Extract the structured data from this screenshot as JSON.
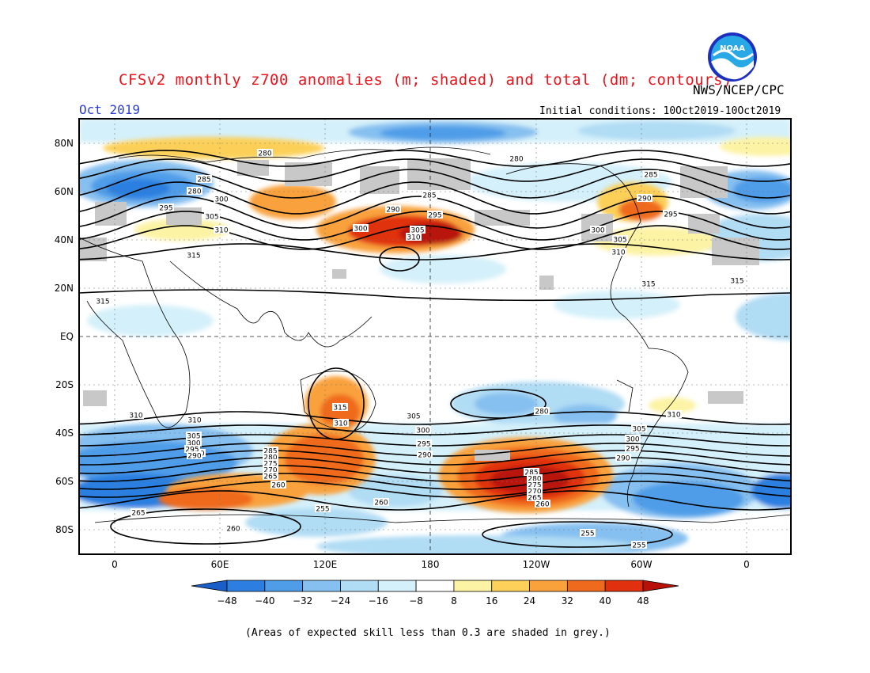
{
  "header": {
    "title": "CFSv2 monthly z700 anomalies (m; shaded) and total (dm; contours)",
    "agency": "NWS/NCEP/CPC",
    "month": "Oct 2019",
    "initial_conditions": "Initial conditions: 10Oct2019-10Oct2019",
    "logo_text": "NOAA"
  },
  "map": {
    "lat_labels": [
      "80N",
      "60N",
      "40N",
      "20N",
      "EQ",
      "20S",
      "40S",
      "60S",
      "80S"
    ],
    "lon_labels": [
      "0",
      "60E",
      "120E",
      "180",
      "120W",
      "60W",
      "0"
    ],
    "contour_labels": [
      "280",
      "285",
      "280",
      "300",
      "295",
      "305",
      "310",
      "315",
      "315",
      "285",
      "290",
      "295",
      "300",
      "305",
      "310",
      "280",
      "285",
      "290",
      "295",
      "300",
      "305",
      "310",
      "315",
      "315",
      "310",
      "305",
      "300",
      "295",
      "290",
      "285",
      "280",
      "275",
      "270",
      "265",
      "260",
      "260",
      "255",
      "260",
      "265",
      "260",
      "310",
      "305",
      "300",
      "295",
      "290",
      "285",
      "280",
      "275",
      "270",
      "265",
      "260",
      "255",
      "255",
      "315",
      "310",
      "305",
      "300",
      "295",
      "290",
      "280",
      "310"
    ],
    "colors": {
      "neg48": "#1a5fc8",
      "neg40": "#2c7fe0",
      "neg32": "#4f9de8",
      "neg24": "#86c0f0",
      "neg16": "#b0dcf4",
      "neg8": "#d4f0fa",
      "pos8": "#fdf3a4",
      "pos16": "#fcd059",
      "pos24": "#f9a23c",
      "pos32": "#f06a1e",
      "pos40": "#e0300e",
      "pos48": "#b81208",
      "low_skill": "#c8c8c8"
    }
  },
  "colorbar": {
    "labels": [
      "-48",
      "-40",
      "-32",
      "-24",
      "-16",
      "-8",
      "8",
      "16",
      "24",
      "32",
      "40",
      "48"
    ],
    "colors": [
      "#1a5fc8",
      "#2c7fe0",
      "#4f9de8",
      "#86c0f0",
      "#b0dcf4",
      "#d4f0fa",
      "#ffffff",
      "#fdf3a4",
      "#fcd059",
      "#f9a23c",
      "#f06a1e",
      "#e0300e",
      "#b81208"
    ]
  },
  "footnote": "(Areas of expected skill less than 0.3 are shaded in grey.)"
}
